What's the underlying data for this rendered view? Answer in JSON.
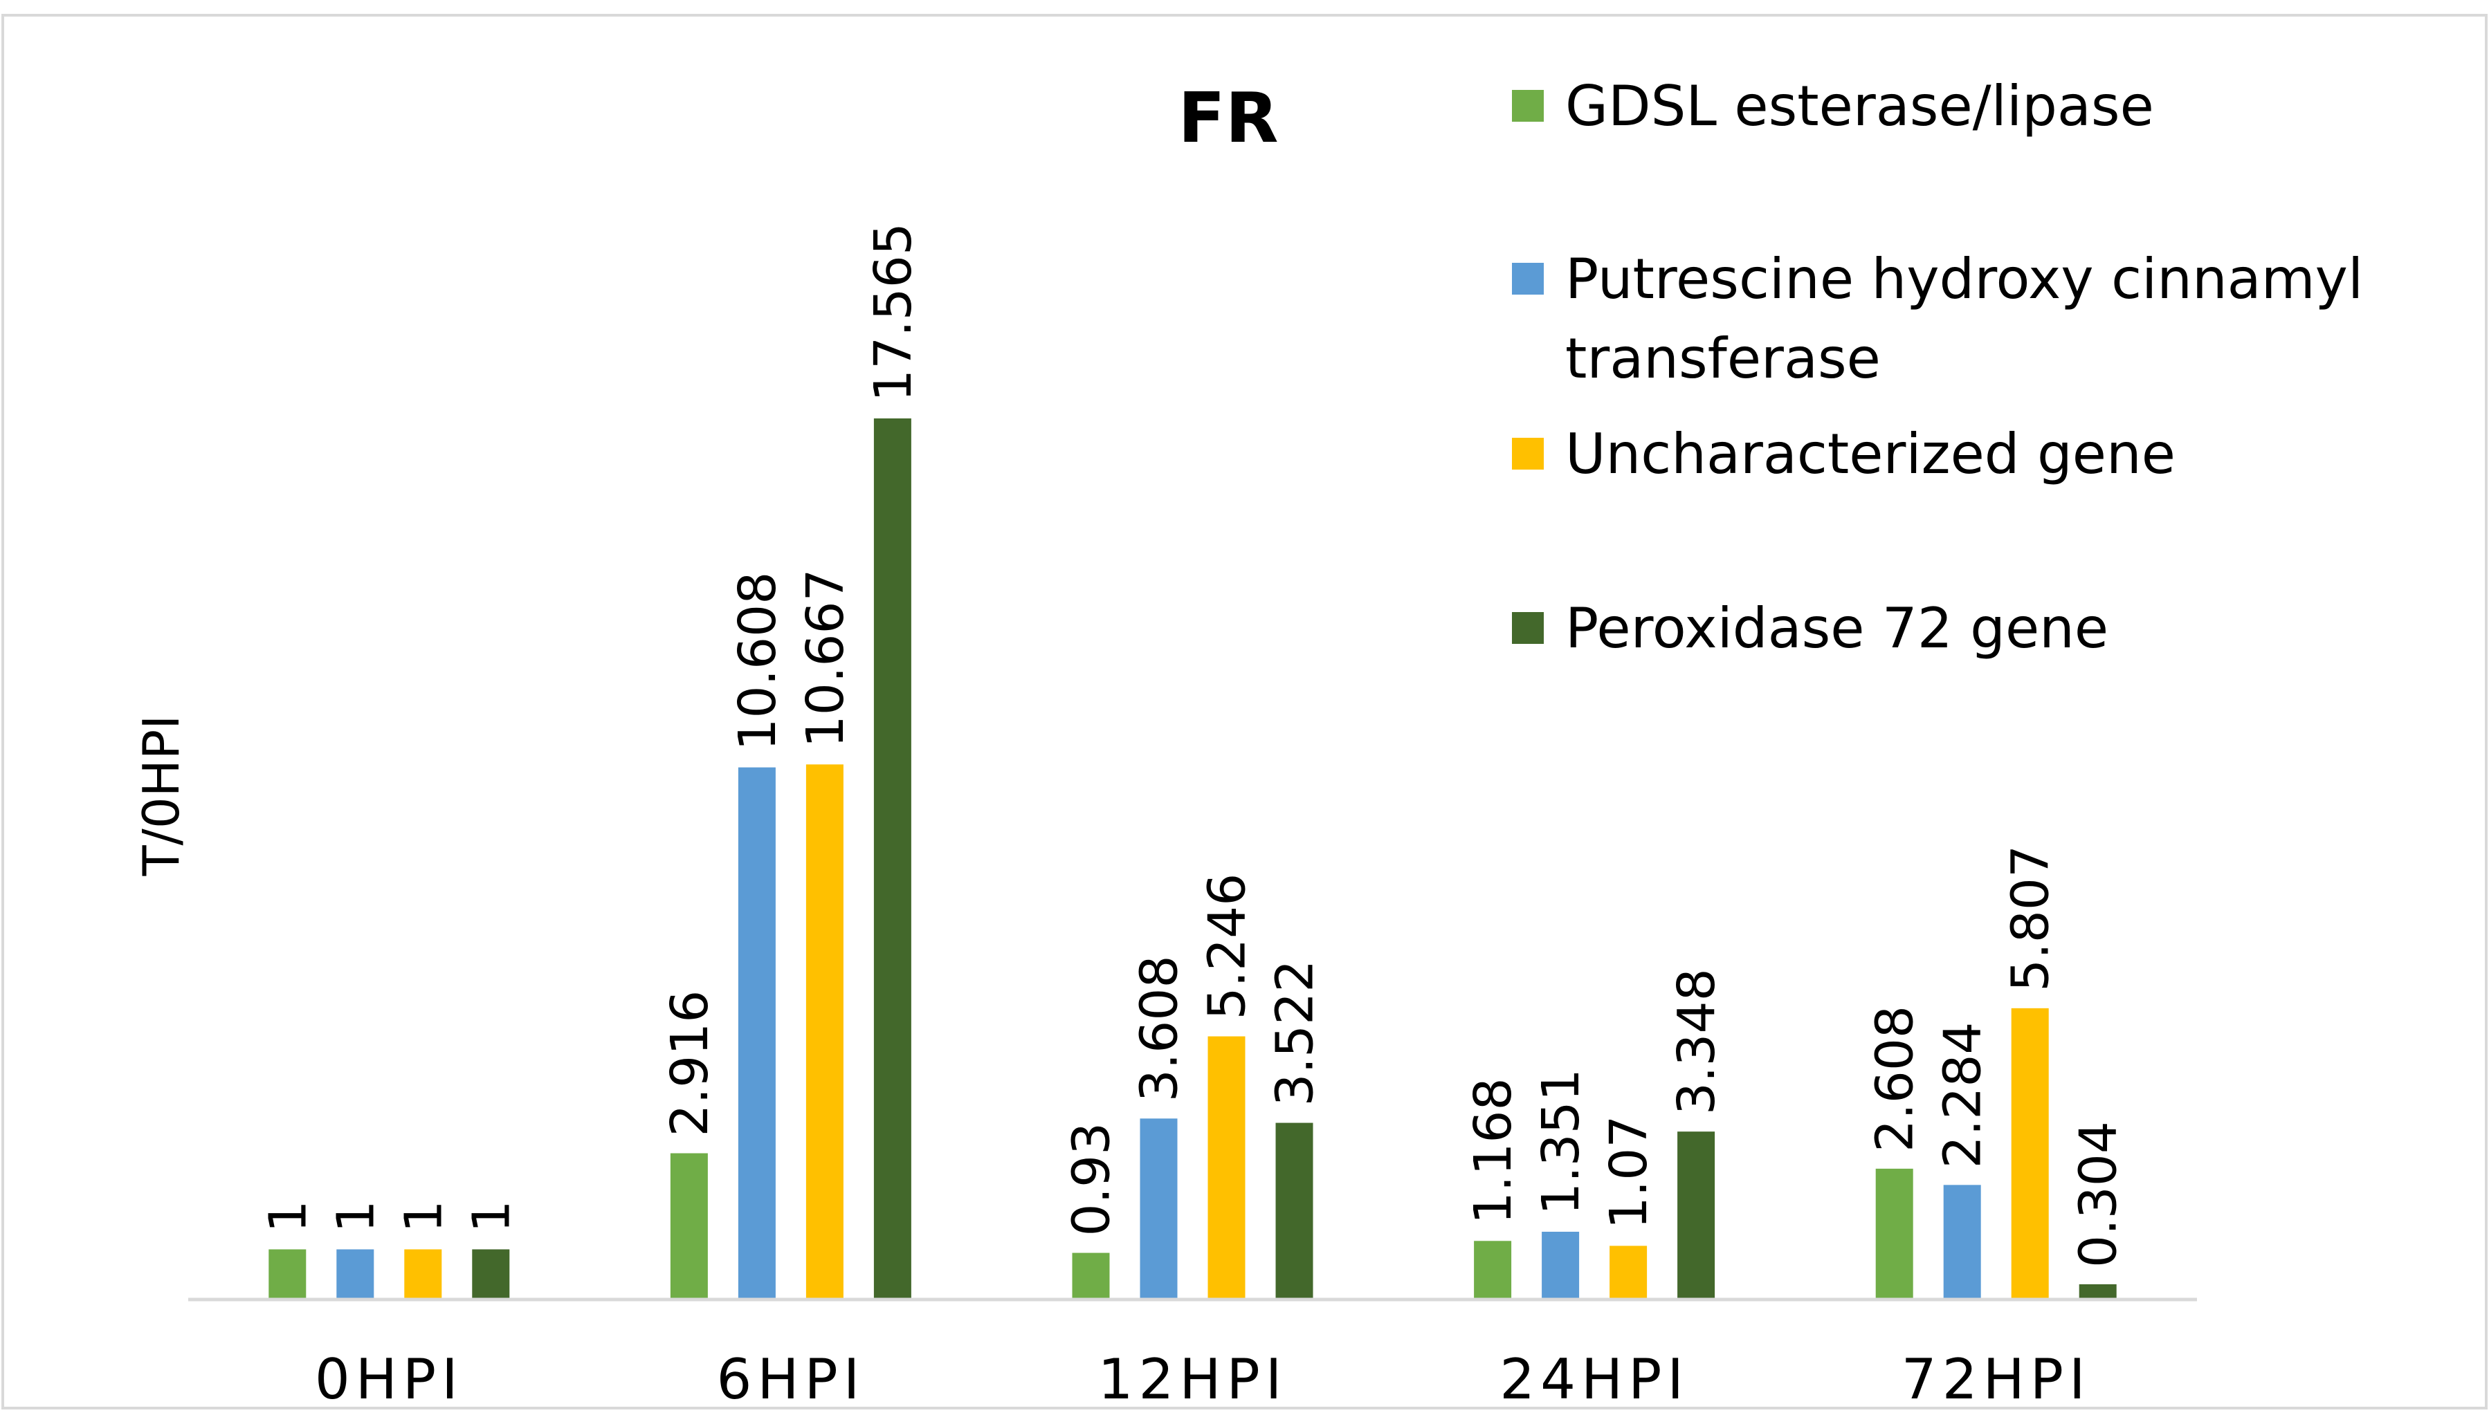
{
  "chart_data": {
    "type": "bar",
    "title": "FR",
    "xlabel": "",
    "ylabel": "T/0HPI",
    "ylim": [
      0,
      20
    ],
    "grid": false,
    "legend_position": "top-right",
    "categories": [
      "0HPI",
      "6HPI",
      "12HPI",
      "24HPI",
      "72HPI"
    ],
    "series": [
      {
        "name": "GDSL esterase/lipase",
        "color": "#70AD47",
        "values": [
          1,
          2.916,
          0.93,
          1.168,
          2.608
        ],
        "labels": [
          "1",
          "2.916",
          "0.93",
          "1.168",
          "2.608"
        ]
      },
      {
        "name": "Putrescine hydroxy cinnamyl transferase",
        "legend_lines": [
          "Putrescine hydroxy cinnamyl",
          "transferase"
        ],
        "color": "#5B9BD5",
        "values": [
          1,
          10.608,
          3.608,
          1.351,
          2.284
        ],
        "labels": [
          "1",
          "10.608",
          "3.608",
          "1.351",
          "2.284"
        ]
      },
      {
        "name": "Uncharacterized gene",
        "color": "#FFC000",
        "values": [
          1,
          10.667,
          5.246,
          1.07,
          5.807
        ],
        "labels": [
          "1",
          "10.667",
          "5.246",
          "1.07",
          "5.807"
        ]
      },
      {
        "name": "Peroxidase 72 gene",
        "color": "#43682B",
        "values": [
          1,
          17.565,
          3.522,
          3.348,
          0.304
        ],
        "labels": [
          "1",
          "17.565",
          "3.522",
          "3.348",
          "0.304"
        ]
      }
    ]
  }
}
